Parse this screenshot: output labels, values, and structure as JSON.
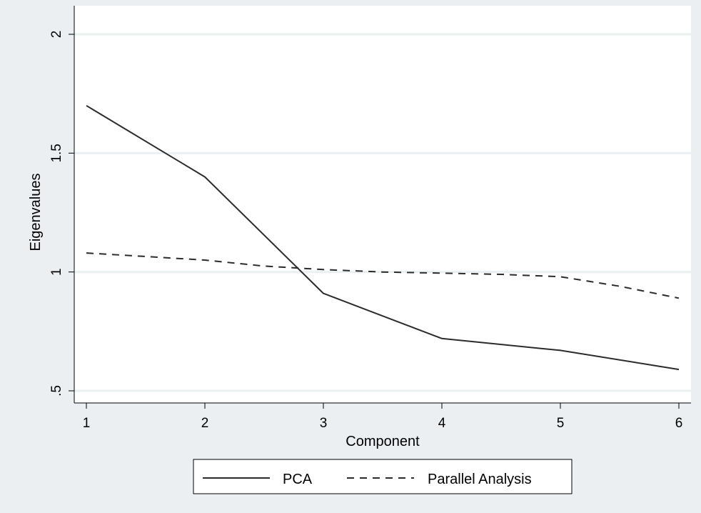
{
  "chart_data": {
    "type": "line",
    "xlabel": "Component",
    "ylabel": "Eigenvalues",
    "x": [
      1,
      2,
      3,
      4,
      5,
      6
    ],
    "xlim": [
      1,
      6
    ],
    "ylim": [
      0.5,
      2
    ],
    "xticks": [
      "1",
      "2",
      "3",
      "4",
      "5",
      "6"
    ],
    "yticks": [
      {
        "value": 0.5,
        "label": ".5"
      },
      {
        "value": 1,
        "label": "1"
      },
      {
        "value": 1.5,
        "label": "1.5"
      },
      {
        "value": 2,
        "label": "2"
      }
    ],
    "grid": true,
    "legend_position": "bottom",
    "series": [
      {
        "name": "PCA",
        "style": "solid",
        "color": "#2b2b2b",
        "values": [
          1.7,
          1.4,
          0.91,
          0.72,
          0.67,
          0.59
        ],
        "points": [
          {
            "x": 1,
            "y": 1.7
          },
          {
            "x": 2,
            "y": 1.4
          },
          {
            "x": 3,
            "y": 0.91
          },
          {
            "x": 4,
            "y": 0.72
          },
          {
            "x": 5,
            "y": 0.67
          },
          {
            "x": 6,
            "y": 0.59
          }
        ]
      },
      {
        "name": "Parallel Analysis",
        "style": "dashed",
        "color": "#2b2b2b",
        "values": [
          1.08,
          1.05,
          1.01,
          1.0,
          0.98,
          0.89
        ],
        "points": [
          {
            "x": 1,
            "y": 1.08
          },
          {
            "x": 1.5,
            "y": 1.065
          },
          {
            "x": 2,
            "y": 1.05
          },
          {
            "x": 2.5,
            "y": 1.025
          },
          {
            "x": 3,
            "y": 1.01
          },
          {
            "x": 3.5,
            "y": 1.0
          },
          {
            "x": 4,
            "y": 0.995
          },
          {
            "x": 4.5,
            "y": 0.99
          },
          {
            "x": 5,
            "y": 0.98
          },
          {
            "x": 5.5,
            "y": 0.94
          },
          {
            "x": 6,
            "y": 0.89
          }
        ]
      }
    ]
  }
}
